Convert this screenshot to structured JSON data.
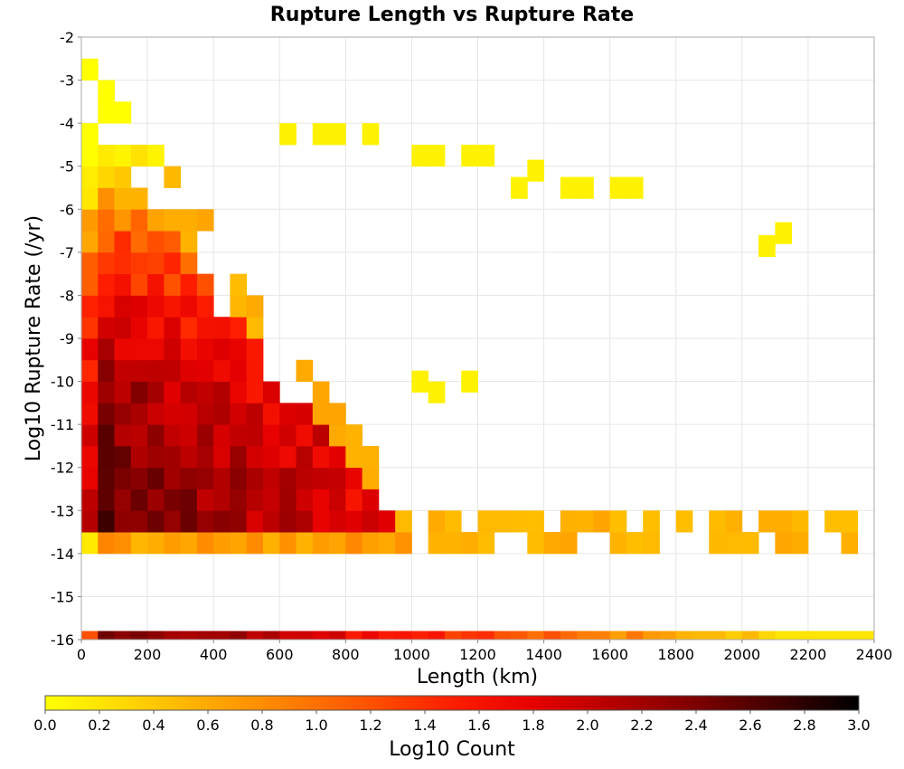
{
  "chart_data": {
    "type": "heatmap",
    "title": "Rupture Length vs Rupture Rate",
    "xlabel": "Length (km)",
    "ylabel": "Log10 Rupture Rate (/yr)",
    "xlim": [
      0,
      2400
    ],
    "ylim": [
      -16,
      -2
    ],
    "x_ticks": [
      "0",
      "200",
      "400",
      "600",
      "800",
      "1000",
      "1200",
      "1400",
      "1600",
      "1800",
      "2000",
      "2200",
      "2400"
    ],
    "y_ticks": [
      "-2",
      "-3",
      "-4",
      "-5",
      "-6",
      "-7",
      "-8",
      "-9",
      "-10",
      "-11",
      "-12",
      "-13",
      "-14",
      "-15",
      "-16"
    ],
    "x_bin_width_km": 50,
    "y_bin_height": 0.5,
    "grid": true,
    "colorbar": {
      "label": "Log10 Count",
      "range": [
        0,
        3
      ],
      "ticks": [
        "0.0",
        "0.2",
        "0.4",
        "0.6",
        "0.8",
        "1.0",
        "1.2",
        "1.4",
        "1.6",
        "1.8",
        "2.0",
        "2.2",
        "2.4",
        "2.6",
        "2.8",
        "3.0"
      ],
      "colors": [
        "#ffff00",
        "#ffd700",
        "#ffaa00",
        "#ff7f00",
        "#ff5000",
        "#ff1e00",
        "#e60000",
        "#b40000",
        "#7d0000",
        "#400000",
        "#000000"
      ]
    }
  }
}
